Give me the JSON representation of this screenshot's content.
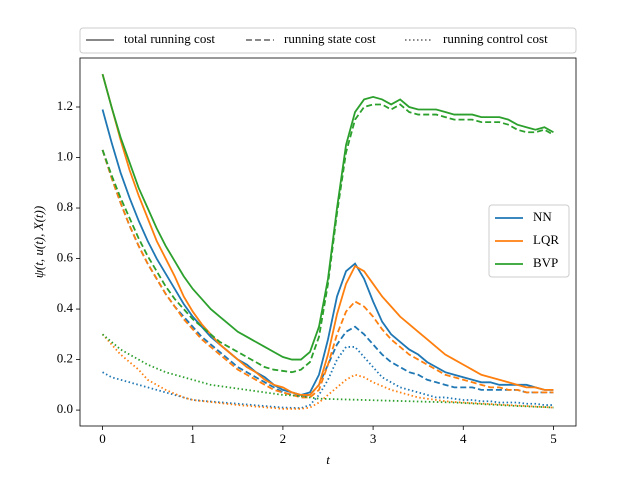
{
  "chart_data": {
    "type": "line",
    "x_label": "t",
    "y_label": "ψ(t, u(t), X(t))",
    "x": [
      0,
      0.1,
      0.2,
      0.3,
      0.4,
      0.5,
      0.6,
      0.7,
      0.8,
      0.9,
      1.0,
      1.1,
      1.2,
      1.3,
      1.4,
      1.5,
      1.6,
      1.7,
      1.8,
      1.9,
      2.0,
      2.1,
      2.2,
      2.3,
      2.4,
      2.5,
      2.6,
      2.7,
      2.8,
      2.9,
      3.0,
      3.1,
      3.2,
      3.3,
      3.4,
      3.5,
      3.6,
      3.7,
      3.8,
      3.9,
      4.0,
      4.1,
      4.2,
      4.3,
      4.4,
      4.5,
      4.6,
      4.7,
      4.8,
      4.9,
      5.0
    ],
    "xlim": [
      -0.25,
      5.25
    ],
    "ylim": [
      -0.063,
      1.394
    ],
    "xticks": [
      0,
      1,
      2,
      3,
      4,
      5
    ],
    "yticks": [
      {
        "value": 0,
        "label": "0.0"
      },
      0.2,
      0.4,
      0.6,
      0.8,
      {
        "value": 1,
        "label": "1.0"
      },
      1.2
    ],
    "cost_styles": [
      {
        "name": "total running cost",
        "dash": "solid"
      },
      {
        "name": "running state cost",
        "dash": "dashed"
      },
      {
        "name": "running control cost",
        "dash": "dotted"
      }
    ],
    "legend_styles_position": "top",
    "legend_methods_position": "center right",
    "methods": [
      {
        "name": "NN",
        "color": "#1f77b4",
        "values": [
          [
            1.19,
            1.06,
            0.94,
            0.84,
            0.75,
            0.67,
            0.6,
            0.54,
            0.48,
            0.42,
            0.37,
            0.33,
            0.29,
            0.26,
            0.23,
            0.2,
            0.18,
            0.15,
            0.13,
            0.1,
            0.08,
            0.07,
            0.06,
            0.07,
            0.14,
            0.28,
            0.45,
            0.55,
            0.58,
            0.52,
            0.43,
            0.35,
            0.3,
            0.27,
            0.24,
            0.22,
            0.19,
            0.17,
            0.15,
            0.14,
            0.13,
            0.12,
            0.11,
            0.11,
            0.1,
            0.1,
            0.1,
            0.1,
            0.09,
            0.08,
            0.08
          ],
          [
            1.03,
            0.92,
            0.82,
            0.73,
            0.65,
            0.58,
            0.52,
            0.46,
            0.41,
            0.37,
            0.33,
            0.29,
            0.26,
            0.23,
            0.2,
            0.17,
            0.15,
            0.13,
            0.11,
            0.09,
            0.07,
            0.06,
            0.055,
            0.06,
            0.1,
            0.18,
            0.26,
            0.31,
            0.33,
            0.3,
            0.26,
            0.22,
            0.19,
            0.17,
            0.15,
            0.14,
            0.12,
            0.11,
            0.1,
            0.09,
            0.09,
            0.09,
            0.08,
            0.08,
            0.08,
            0.08,
            0.08,
            0.07,
            0.07,
            0.07,
            0.07
          ],
          [
            0.15,
            0.13,
            0.12,
            0.11,
            0.1,
            0.09,
            0.08,
            0.07,
            0.06,
            0.05,
            0.04,
            0.037,
            0.034,
            0.031,
            0.028,
            0.025,
            0.022,
            0.019,
            0.016,
            0.013,
            0.01,
            0.009,
            0.008,
            0.02,
            0.06,
            0.12,
            0.2,
            0.25,
            0.25,
            0.21,
            0.17,
            0.13,
            0.11,
            0.09,
            0.08,
            0.07,
            0.06,
            0.05,
            0.05,
            0.045,
            0.04,
            0.04,
            0.035,
            0.035,
            0.03,
            0.03,
            0.03,
            0.025,
            0.025,
            0.02,
            0.02
          ]
        ]
      },
      {
        "name": "LQR",
        "color": "#ff7f0e",
        "values": [
          [
            1.33,
            1.2,
            1.07,
            0.95,
            0.85,
            0.76,
            0.67,
            0.6,
            0.53,
            0.45,
            0.39,
            0.34,
            0.3,
            0.26,
            0.23,
            0.2,
            0.17,
            0.15,
            0.12,
            0.1,
            0.09,
            0.07,
            0.06,
            0.06,
            0.1,
            0.22,
            0.38,
            0.5,
            0.57,
            0.55,
            0.5,
            0.45,
            0.41,
            0.37,
            0.34,
            0.31,
            0.28,
            0.25,
            0.22,
            0.2,
            0.18,
            0.16,
            0.14,
            0.13,
            0.12,
            0.11,
            0.1,
            0.09,
            0.09,
            0.08,
            0.08
          ],
          [
            1.03,
            0.92,
            0.82,
            0.73,
            0.65,
            0.58,
            0.52,
            0.46,
            0.41,
            0.36,
            0.32,
            0.28,
            0.25,
            0.22,
            0.19,
            0.16,
            0.14,
            0.12,
            0.1,
            0.08,
            0.07,
            0.06,
            0.05,
            0.05,
            0.08,
            0.18,
            0.3,
            0.39,
            0.43,
            0.41,
            0.37,
            0.32,
            0.28,
            0.25,
            0.22,
            0.2,
            0.18,
            0.16,
            0.14,
            0.13,
            0.12,
            0.11,
            0.1,
            0.09,
            0.09,
            0.08,
            0.08,
            0.07,
            0.07,
            0.07,
            0.07
          ],
          [
            0.3,
            0.26,
            0.22,
            0.19,
            0.16,
            0.12,
            0.1,
            0.08,
            0.065,
            0.05,
            0.04,
            0.036,
            0.032,
            0.028,
            0.024,
            0.02,
            0.017,
            0.014,
            0.011,
            0.008,
            0.005,
            0.005,
            0.005,
            0.01,
            0.03,
            0.06,
            0.09,
            0.12,
            0.14,
            0.13,
            0.11,
            0.095,
            0.08,
            0.07,
            0.06,
            0.05,
            0.045,
            0.04,
            0.035,
            0.032,
            0.03,
            0.028,
            0.026,
            0.024,
            0.022,
            0.02,
            0.018,
            0.016,
            0.014,
            0.012,
            0.01
          ]
        ]
      },
      {
        "name": "BVP",
        "color": "#2ca02c",
        "values": [
          [
            1.33,
            1.2,
            1.08,
            0.98,
            0.88,
            0.8,
            0.72,
            0.65,
            0.59,
            0.53,
            0.48,
            0.44,
            0.4,
            0.37,
            0.34,
            0.31,
            0.29,
            0.27,
            0.25,
            0.23,
            0.21,
            0.2,
            0.2,
            0.23,
            0.33,
            0.52,
            0.8,
            1.05,
            1.18,
            1.23,
            1.24,
            1.23,
            1.21,
            1.23,
            1.2,
            1.19,
            1.19,
            1.19,
            1.18,
            1.17,
            1.17,
            1.17,
            1.16,
            1.16,
            1.16,
            1.15,
            1.13,
            1.12,
            1.11,
            1.12,
            1.1
          ],
          [
            1.03,
            0.93,
            0.84,
            0.76,
            0.68,
            0.61,
            0.55,
            0.49,
            0.44,
            0.4,
            0.36,
            0.33,
            0.3,
            0.27,
            0.25,
            0.23,
            0.21,
            0.19,
            0.17,
            0.16,
            0.155,
            0.15,
            0.16,
            0.19,
            0.29,
            0.5,
            0.78,
            1.02,
            1.15,
            1.2,
            1.21,
            1.21,
            1.19,
            1.21,
            1.18,
            1.17,
            1.17,
            1.17,
            1.16,
            1.15,
            1.15,
            1.15,
            1.14,
            1.14,
            1.14,
            1.13,
            1.11,
            1.1,
            1.1,
            1.11,
            1.09
          ],
          [
            0.3,
            0.27,
            0.24,
            0.22,
            0.2,
            0.18,
            0.165,
            0.15,
            0.14,
            0.13,
            0.12,
            0.11,
            0.1,
            0.095,
            0.09,
            0.085,
            0.08,
            0.075,
            0.07,
            0.065,
            0.06,
            0.058,
            0.055,
            0.05,
            0.045,
            0.044,
            0.043,
            0.042,
            0.041,
            0.04,
            0.039,
            0.038,
            0.037,
            0.036,
            0.035,
            0.034,
            0.033,
            0.032,
            0.031,
            0.03,
            0.028,
            0.026,
            0.024,
            0.022,
            0.02,
            0.018,
            0.016,
            0.015,
            0.013,
            0.012,
            0.01
          ]
        ]
      }
    ]
  }
}
